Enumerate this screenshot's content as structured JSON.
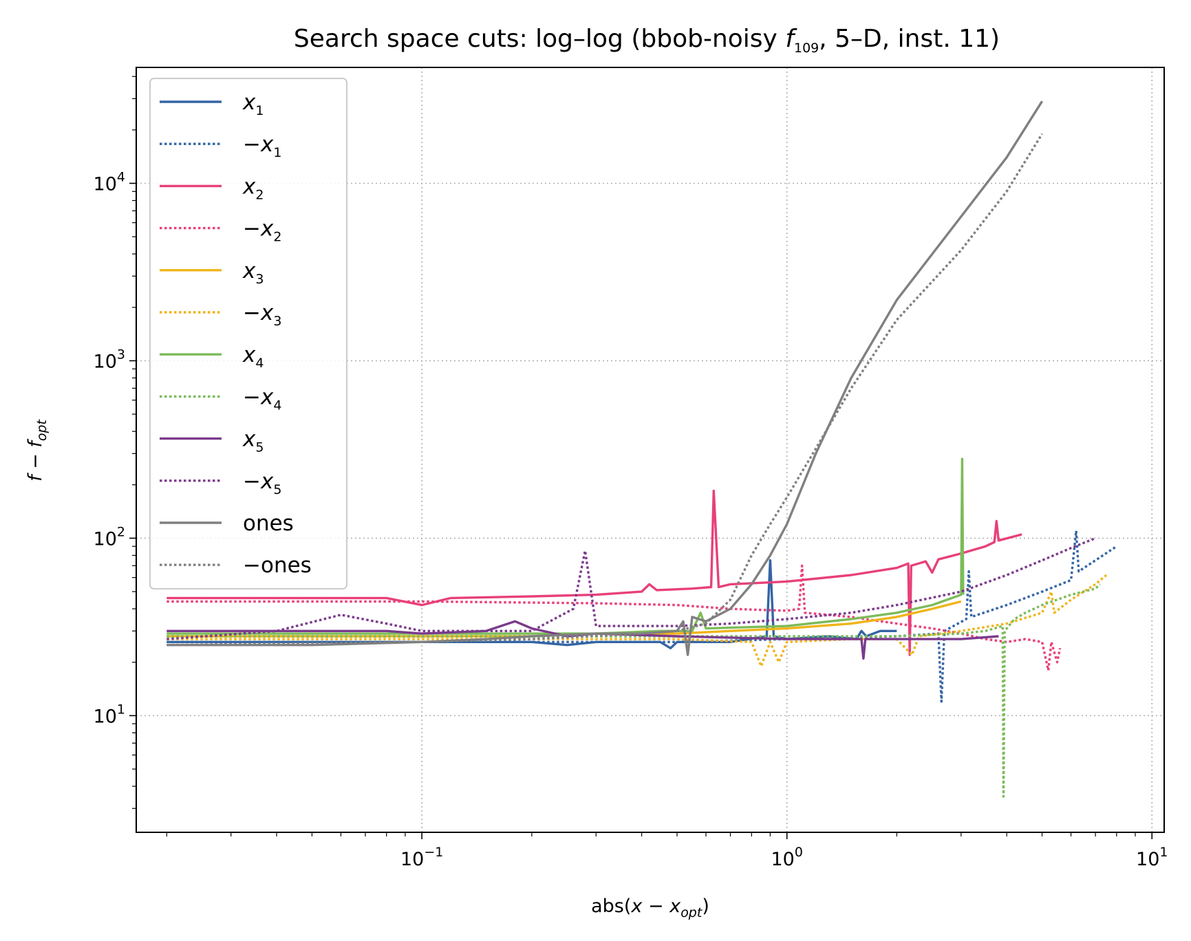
{
  "chart_data": {
    "type": "line",
    "title": "Search space cuts: log–log (bbob-noisy f109, 5–D, inst. 11)",
    "title_parts": {
      "pre": "Search space cuts: log–log (bbob-noisy ",
      "f": "f",
      "sub": "109",
      "post": ", 5–D, inst. 11)"
    },
    "xlabel": "abs(x − x_opt)",
    "xlabel_parts": {
      "pre": "abs(",
      "var": "x",
      "op": " − ",
      "var2": "x",
      "sub": "opt",
      "post": ")"
    },
    "ylabel": "f − f_opt",
    "ylabel_parts": {
      "var": "f",
      "op": " − ",
      "var2": "f",
      "sub": "opt"
    },
    "xscale": "log",
    "yscale": "log",
    "xlim": [
      0.0165,
      10.8
    ],
    "ylim": [
      2.2,
      45000
    ],
    "xticks": [
      {
        "value": 0.1,
        "base": "10",
        "exp": "−1"
      },
      {
        "value": 1,
        "base": "10",
        "exp": "0"
      },
      {
        "value": 10,
        "base": "10",
        "exp": "1"
      }
    ],
    "yticks": [
      {
        "value": 10,
        "base": "10",
        "exp": "1"
      },
      {
        "value": 100,
        "base": "10",
        "exp": "2"
      },
      {
        "value": 1000,
        "base": "10",
        "exp": "3"
      },
      {
        "value": 10000,
        "base": "10",
        "exp": "4"
      }
    ],
    "grid": true,
    "legend_position": "top-left",
    "series": [
      {
        "name": "x1",
        "label_sign": "",
        "label_var": "x",
        "label_sub": "1",
        "color": "#3465a4",
        "dash": "solid",
        "points": [
          [
            0.02,
            26
          ],
          [
            0.05,
            26
          ],
          [
            0.1,
            26
          ],
          [
            0.2,
            26
          ],
          [
            0.25,
            25
          ],
          [
            0.3,
            26
          ],
          [
            0.45,
            26
          ],
          [
            0.48,
            24
          ],
          [
            0.5,
            26
          ],
          [
            0.7,
            26
          ],
          [
            0.88,
            28
          ],
          [
            0.9,
            75
          ],
          [
            0.92,
            28
          ],
          [
            1.0,
            27
          ],
          [
            1.3,
            28
          ],
          [
            1.55,
            27
          ],
          [
            1.6,
            30
          ],
          [
            1.65,
            28
          ],
          [
            1.8,
            30
          ],
          [
            2.0,
            30
          ]
        ]
      },
      {
        "name": "−x1",
        "label_sign": "−",
        "label_var": "x",
        "label_sub": "1",
        "color": "#3465a4",
        "dash": "dotted",
        "points": [
          [
            0.02,
            26
          ],
          [
            0.1,
            26
          ],
          [
            0.5,
            26
          ],
          [
            1.0,
            27
          ],
          [
            2.0,
            28
          ],
          [
            2.6,
            29
          ],
          [
            2.65,
            12
          ],
          [
            2.7,
            30
          ],
          [
            3.1,
            35
          ],
          [
            3.15,
            65
          ],
          [
            3.2,
            36
          ],
          [
            4.0,
            42
          ],
          [
            5.0,
            50
          ],
          [
            6.0,
            58
          ],
          [
            6.2,
            110
          ],
          [
            6.3,
            65
          ],
          [
            7.0,
            75
          ],
          [
            8.0,
            90
          ]
        ]
      },
      {
        "name": "x2",
        "label_sign": "",
        "label_var": "x",
        "label_sub": "2",
        "color": "#e8407a",
        "dash": "solid",
        "points": [
          [
            0.02,
            46
          ],
          [
            0.05,
            46
          ],
          [
            0.08,
            46
          ],
          [
            0.1,
            42
          ],
          [
            0.12,
            46
          ],
          [
            0.2,
            47
          ],
          [
            0.3,
            48
          ],
          [
            0.4,
            50
          ],
          [
            0.42,
            55
          ],
          [
            0.44,
            51
          ],
          [
            0.55,
            52
          ],
          [
            0.62,
            53
          ],
          [
            0.63,
            185
          ],
          [
            0.65,
            53
          ],
          [
            0.7,
            55
          ],
          [
            1.0,
            57
          ],
          [
            1.5,
            62
          ],
          [
            2.0,
            68
          ],
          [
            2.15,
            72
          ],
          [
            2.17,
            22
          ],
          [
            2.19,
            70
          ],
          [
            2.4,
            74
          ],
          [
            2.5,
            64
          ],
          [
            2.6,
            76
          ],
          [
            3.0,
            82
          ],
          [
            3.5,
            90
          ],
          [
            3.7,
            95
          ],
          [
            3.75,
            125
          ],
          [
            3.8,
            97
          ],
          [
            4.4,
            105
          ]
        ]
      },
      {
        "name": "−x2",
        "label_sign": "−",
        "label_var": "x",
        "label_sub": "2",
        "color": "#e8407a",
        "dash": "dotted",
        "points": [
          [
            0.02,
            44
          ],
          [
            0.1,
            44
          ],
          [
            0.3,
            43
          ],
          [
            0.5,
            42
          ],
          [
            0.7,
            40
          ],
          [
            1.0,
            39
          ],
          [
            1.08,
            40
          ],
          [
            1.1,
            70
          ],
          [
            1.12,
            38
          ],
          [
            1.5,
            36
          ],
          [
            2.0,
            33
          ],
          [
            2.5,
            31
          ],
          [
            3.0,
            29
          ],
          [
            3.5,
            27
          ],
          [
            4.0,
            26
          ],
          [
            4.5,
            27
          ],
          [
            5.0,
            26
          ],
          [
            5.2,
            18
          ],
          [
            5.3,
            26
          ],
          [
            5.5,
            20
          ],
          [
            5.6,
            24
          ]
        ]
      },
      {
        "name": "x3",
        "label_sign": "",
        "label_var": "x",
        "label_sub": "3",
        "color": "#f0b419",
        "dash": "solid",
        "points": [
          [
            0.02,
            28
          ],
          [
            0.1,
            28
          ],
          [
            0.2,
            28
          ],
          [
            0.3,
            29
          ],
          [
            0.5,
            29
          ],
          [
            0.7,
            30
          ],
          [
            1.0,
            31
          ],
          [
            1.5,
            33
          ],
          [
            2.0,
            36
          ],
          [
            2.5,
            40
          ],
          [
            3.0,
            44
          ]
        ]
      },
      {
        "name": "−x3",
        "label_sign": "−",
        "label_var": "x",
        "label_sub": "3",
        "color": "#f0b419",
        "dash": "dotted",
        "points": [
          [
            0.02,
            27
          ],
          [
            0.1,
            27
          ],
          [
            0.5,
            27
          ],
          [
            0.8,
            26
          ],
          [
            0.85,
            19
          ],
          [
            0.9,
            26
          ],
          [
            0.95,
            20
          ],
          [
            1.0,
            26
          ],
          [
            1.5,
            27
          ],
          [
            2.0,
            27
          ],
          [
            2.2,
            22
          ],
          [
            2.3,
            28
          ],
          [
            3.0,
            30
          ],
          [
            4.0,
            33
          ],
          [
            5.0,
            38
          ],
          [
            5.3,
            50
          ],
          [
            5.4,
            38
          ],
          [
            6.0,
            45
          ],
          [
            7.0,
            55
          ],
          [
            7.5,
            62
          ]
        ]
      },
      {
        "name": "x4",
        "label_sign": "",
        "label_var": "x",
        "label_sub": "4",
        "color": "#7cbb5a",
        "dash": "solid",
        "points": [
          [
            0.02,
            29
          ],
          [
            0.1,
            29
          ],
          [
            0.2,
            29
          ],
          [
            0.3,
            29
          ],
          [
            0.45,
            30
          ],
          [
            0.55,
            30
          ],
          [
            0.58,
            38
          ],
          [
            0.6,
            31
          ],
          [
            1.0,
            32
          ],
          [
            1.5,
            35
          ],
          [
            2.0,
            38
          ],
          [
            2.5,
            42
          ],
          [
            3.0,
            48
          ],
          [
            3.02,
            280
          ],
          [
            3.04,
            48
          ]
        ]
      },
      {
        "name": "−x4",
        "label_sign": "−",
        "label_var": "x",
        "label_sub": "4",
        "color": "#7cbb5a",
        "dash": "dotted",
        "points": [
          [
            0.02,
            28
          ],
          [
            0.1,
            28
          ],
          [
            0.5,
            28
          ],
          [
            1.0,
            28
          ],
          [
            2.0,
            28
          ],
          [
            3.0,
            29
          ],
          [
            3.5,
            30
          ],
          [
            3.9,
            32
          ],
          [
            3.92,
            3.5
          ],
          [
            3.95,
            30
          ],
          [
            4.2,
            35
          ],
          [
            4.5,
            38
          ],
          [
            5.0,
            42
          ],
          [
            6.0,
            48
          ],
          [
            7.0,
            52
          ],
          [
            7.2,
            55
          ]
        ]
      },
      {
        "name": "x5",
        "label_sign": "",
        "label_var": "x",
        "label_sub": "5",
        "color": "#7b3a8c",
        "dash": "solid",
        "points": [
          [
            0.02,
            30
          ],
          [
            0.08,
            30
          ],
          [
            0.1,
            29
          ],
          [
            0.15,
            30
          ],
          [
            0.18,
            34
          ],
          [
            0.2,
            31
          ],
          [
            0.25,
            28
          ],
          [
            0.3,
            29
          ],
          [
            0.5,
            28
          ],
          [
            1.0,
            27
          ],
          [
            1.5,
            27
          ],
          [
            1.6,
            27
          ],
          [
            1.62,
            21
          ],
          [
            1.64,
            27
          ],
          [
            2.0,
            27
          ],
          [
            3.0,
            27
          ],
          [
            3.8,
            28
          ]
        ]
      },
      {
        "name": "−x5",
        "label_sign": "−",
        "label_var": "x",
        "label_sub": "5",
        "color": "#7b3a8c",
        "dash": "dotted",
        "points": [
          [
            0.02,
            27
          ],
          [
            0.04,
            30
          ],
          [
            0.06,
            37
          ],
          [
            0.08,
            33
          ],
          [
            0.1,
            30
          ],
          [
            0.2,
            30
          ],
          [
            0.26,
            40
          ],
          [
            0.28,
            85
          ],
          [
            0.3,
            32
          ],
          [
            0.5,
            32
          ],
          [
            0.7,
            33
          ],
          [
            1.0,
            35
          ],
          [
            1.5,
            38
          ],
          [
            2.0,
            42
          ],
          [
            3.0,
            50
          ],
          [
            4.0,
            62
          ],
          [
            5.0,
            75
          ],
          [
            6.0,
            88
          ],
          [
            7.0,
            100
          ]
        ]
      },
      {
        "name": "ones",
        "label_sign": "",
        "label_var": "",
        "label_sub": "",
        "label_text": "ones",
        "color": "#808080",
        "dash": "solid",
        "points": [
          [
            0.02,
            25
          ],
          [
            0.05,
            25
          ],
          [
            0.1,
            26
          ],
          [
            0.15,
            27
          ],
          [
            0.2,
            28
          ],
          [
            0.3,
            29
          ],
          [
            0.4,
            29
          ],
          [
            0.5,
            30
          ],
          [
            0.52,
            34
          ],
          [
            0.535,
            22
          ],
          [
            0.55,
            36
          ],
          [
            0.6,
            34
          ],
          [
            0.7,
            40
          ],
          [
            0.8,
            55
          ],
          [
            0.9,
            80
          ],
          [
            1.0,
            120
          ],
          [
            1.2,
            300
          ],
          [
            1.5,
            800
          ],
          [
            2.0,
            2200
          ],
          [
            3.0,
            6500
          ],
          [
            4.0,
            14000
          ],
          [
            5.0,
            29000
          ]
        ]
      },
      {
        "name": "−ones",
        "label_sign": "−",
        "label_var": "",
        "label_sub": "",
        "label_text": "ones",
        "color": "#808080",
        "dash": "dotted",
        "points": [
          [
            0.02,
            25
          ],
          [
            0.1,
            26
          ],
          [
            0.2,
            27
          ],
          [
            0.4,
            29
          ],
          [
            0.5,
            30
          ],
          [
            0.6,
            33
          ],
          [
            0.7,
            45
          ],
          [
            0.8,
            80
          ],
          [
            0.9,
            120
          ],
          [
            1.0,
            170
          ],
          [
            1.2,
            320
          ],
          [
            1.5,
            700
          ],
          [
            2.0,
            1700
          ],
          [
            3.0,
            4200
          ],
          [
            4.0,
            9000
          ],
          [
            5.0,
            19000
          ]
        ]
      }
    ]
  }
}
